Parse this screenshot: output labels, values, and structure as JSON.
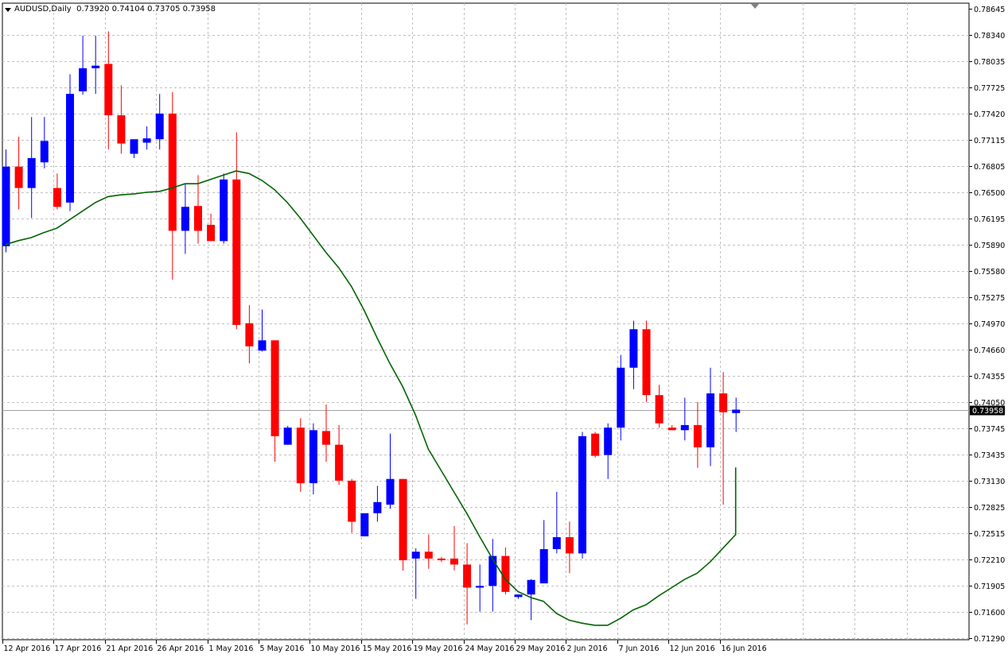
{
  "header": {
    "symbol": "AUDUSD,Daily",
    "ohlc": "0.73920 0.74104 0.73705 0.73958"
  },
  "chart_data": {
    "type": "candlestick",
    "ylim": [
      0.7129,
      0.78645
    ],
    "y_ticks": [
      "0.78645",
      "0.78340",
      "0.78035",
      "0.77725",
      "0.77420",
      "0.77115",
      "0.76805",
      "0.76500",
      "0.76195",
      "0.75890",
      "0.75580",
      "0.75275",
      "0.74970",
      "0.74660",
      "0.74355",
      "0.74050",
      "0.73745",
      "0.73435",
      "0.73130",
      "0.72825",
      "0.72515",
      "0.72210",
      "0.71905",
      "0.71600",
      "0.71290"
    ],
    "x_labels": [
      {
        "i": 0,
        "label": "12 Apr 2016"
      },
      {
        "i": 4,
        "label": "17 Apr 2016"
      },
      {
        "i": 8,
        "label": "21 Apr 2016"
      },
      {
        "i": 12,
        "label": "26 Apr 2016"
      },
      {
        "i": 16,
        "label": "1 May 2016"
      },
      {
        "i": 20,
        "label": "5 May 2016"
      },
      {
        "i": 24,
        "label": "10 May 2016"
      },
      {
        "i": 28,
        "label": "15 May 2016"
      },
      {
        "i": 32,
        "label": "19 May 2016"
      },
      {
        "i": 36,
        "label": "24 May 2016"
      },
      {
        "i": 40,
        "label": "29 May 2016"
      },
      {
        "i": 44,
        "label": "2 Jun 2016"
      },
      {
        "i": 48,
        "label": "7 Jun 2016"
      },
      {
        "i": 52,
        "label": "12 Jun 2016"
      },
      {
        "i": 56,
        "label": "16 Jun 2016"
      }
    ],
    "current_price": "0.73958",
    "candles": [
      {
        "o": 0.7587,
        "h": 0.77,
        "l": 0.758,
        "c": 0.768
      },
      {
        "o": 0.768,
        "h": 0.7715,
        "l": 0.763,
        "c": 0.7655
      },
      {
        "o": 0.7655,
        "h": 0.7738,
        "l": 0.762,
        "c": 0.769
      },
      {
        "o": 0.7685,
        "h": 0.7738,
        "l": 0.7678,
        "c": 0.771
      },
      {
        "o": 0.7655,
        "h": 0.7672,
        "l": 0.763,
        "c": 0.7633
      },
      {
        "o": 0.7638,
        "h": 0.7788,
        "l": 0.7628,
        "c": 0.7765
      },
      {
        "o": 0.7768,
        "h": 0.7833,
        "l": 0.7764,
        "c": 0.7795
      },
      {
        "o": 0.7795,
        "h": 0.7833,
        "l": 0.7765,
        "c": 0.7798
      },
      {
        "o": 0.78,
        "h": 0.7838,
        "l": 0.77,
        "c": 0.774
      },
      {
        "o": 0.774,
        "h": 0.7775,
        "l": 0.7695,
        "c": 0.7707
      },
      {
        "o": 0.7695,
        "h": 0.771,
        "l": 0.769,
        "c": 0.7712
      },
      {
        "o": 0.7708,
        "h": 0.7727,
        "l": 0.77,
        "c": 0.7713
      },
      {
        "o": 0.7712,
        "h": 0.7765,
        "l": 0.77,
        "c": 0.7742
      },
      {
        "o": 0.7742,
        "h": 0.7767,
        "l": 0.7548,
        "c": 0.7605
      },
      {
        "o": 0.7605,
        "h": 0.766,
        "l": 0.7578,
        "c": 0.7633
      },
      {
        "o": 0.7634,
        "h": 0.767,
        "l": 0.759,
        "c": 0.7605
      },
      {
        "o": 0.7612,
        "h": 0.7625,
        "l": 0.7595,
        "c": 0.7593
      },
      {
        "o": 0.7593,
        "h": 0.7672,
        "l": 0.759,
        "c": 0.7665
      },
      {
        "o": 0.7665,
        "h": 0.772,
        "l": 0.749,
        "c": 0.7495
      },
      {
        "o": 0.7497,
        "h": 0.7518,
        "l": 0.745,
        "c": 0.747
      },
      {
        "o": 0.7465,
        "h": 0.7513,
        "l": 0.7464,
        "c": 0.7477
      },
      {
        "o": 0.7477,
        "h": 0.7477,
        "l": 0.7335,
        "c": 0.7365
      },
      {
        "o": 0.7355,
        "h": 0.7377,
        "l": 0.7355,
        "c": 0.7375
      },
      {
        "o": 0.7375,
        "h": 0.7386,
        "l": 0.73,
        "c": 0.731
      },
      {
        "o": 0.731,
        "h": 0.738,
        "l": 0.7297,
        "c": 0.7372
      },
      {
        "o": 0.7371,
        "h": 0.7402,
        "l": 0.7335,
        "c": 0.7355
      },
      {
        "o": 0.7355,
        "h": 0.7378,
        "l": 0.7308,
        "c": 0.7313
      },
      {
        "o": 0.7313,
        "h": 0.7315,
        "l": 0.7252,
        "c": 0.7265
      },
      {
        "o": 0.7248,
        "h": 0.7273,
        "l": 0.7248,
        "c": 0.7275
      },
      {
        "o": 0.7275,
        "h": 0.7307,
        "l": 0.7265,
        "c": 0.7288
      },
      {
        "o": 0.7285,
        "h": 0.7368,
        "l": 0.728,
        "c": 0.7315
      },
      {
        "o": 0.7315,
        "h": 0.7315,
        "l": 0.7208,
        "c": 0.722
      },
      {
        "o": 0.7222,
        "h": 0.7234,
        "l": 0.7175,
        "c": 0.723
      },
      {
        "o": 0.723,
        "h": 0.725,
        "l": 0.721,
        "c": 0.7222
      },
      {
        "o": 0.7222,
        "h": 0.7224,
        "l": 0.7218,
        "c": 0.722
      },
      {
        "o": 0.7222,
        "h": 0.726,
        "l": 0.7208,
        "c": 0.7215
      },
      {
        "o": 0.7215,
        "h": 0.724,
        "l": 0.7145,
        "c": 0.7188
      },
      {
        "o": 0.7188,
        "h": 0.7215,
        "l": 0.716,
        "c": 0.719
      },
      {
        "o": 0.719,
        "h": 0.7245,
        "l": 0.716,
        "c": 0.7225
      },
      {
        "o": 0.7225,
        "h": 0.7235,
        "l": 0.718,
        "c": 0.7183
      },
      {
        "o": 0.7177,
        "h": 0.718,
        "l": 0.7175,
        "c": 0.718
      },
      {
        "o": 0.718,
        "h": 0.7198,
        "l": 0.715,
        "c": 0.7197
      },
      {
        "o": 0.7193,
        "h": 0.7267,
        "l": 0.7193,
        "c": 0.7233
      },
      {
        "o": 0.7233,
        "h": 0.73,
        "l": 0.7228,
        "c": 0.7247
      },
      {
        "o": 0.7247,
        "h": 0.7265,
        "l": 0.7205,
        "c": 0.7228
      },
      {
        "o": 0.7228,
        "h": 0.737,
        "l": 0.7222,
        "c": 0.7365
      },
      {
        "o": 0.7368,
        "h": 0.737,
        "l": 0.734,
        "c": 0.7342
      },
      {
        "o": 0.7343,
        "h": 0.738,
        "l": 0.7315,
        "c": 0.7375
      },
      {
        "o": 0.7375,
        "h": 0.746,
        "l": 0.736,
        "c": 0.7445
      },
      {
        "o": 0.7445,
        "h": 0.75,
        "l": 0.742,
        "c": 0.749
      },
      {
        "o": 0.749,
        "h": 0.75,
        "l": 0.7405,
        "c": 0.7413
      },
      {
        "o": 0.7413,
        "h": 0.7425,
        "l": 0.7375,
        "c": 0.738
      },
      {
        "o": 0.7375,
        "h": 0.7378,
        "l": 0.7372,
        "c": 0.7372
      },
      {
        "o": 0.7372,
        "h": 0.741,
        "l": 0.736,
        "c": 0.7378
      },
      {
        "o": 0.7378,
        "h": 0.7405,
        "l": 0.7328,
        "c": 0.7352
      },
      {
        "o": 0.7352,
        "h": 0.7445,
        "l": 0.733,
        "c": 0.7415
      },
      {
        "o": 0.7415,
        "h": 0.744,
        "l": 0.7285,
        "c": 0.7393
      },
      {
        "o": 0.7392,
        "h": 0.741,
        "l": 0.737,
        "c": 0.7396
      }
    ],
    "ma": [
      0.7589,
      0.75935,
      0.7597,
      0.7603,
      0.7608,
      0.7618,
      0.7628,
      0.7638,
      0.7645,
      0.7647,
      0.7648,
      0.765,
      0.7651,
      0.7655,
      0.766,
      0.766,
      0.7665,
      0.767,
      0.7675,
      0.7672,
      0.7664,
      0.7653,
      0.7638,
      0.762,
      0.76,
      0.758,
      0.7562,
      0.754,
      0.7512,
      0.748,
      0.745,
      0.7423,
      0.739,
      0.735,
      0.7325,
      0.73,
      0.7275,
      0.7248,
      0.7222,
      0.7198,
      0.71835,
      0.71765,
      0.7172,
      0.7158,
      0.715,
      0.71465,
      0.7144,
      0.7144,
      0.7152,
      0.7162,
      0.7168,
      0.71785,
      0.7188,
      0.71975,
      0.7205,
      0.7218,
      0.7234,
      0.725
    ],
    "ma_current": 0.73285,
    "colors": {
      "bull": "#0000ff",
      "bear": "#ff0000",
      "ma": "#006400",
      "grid": "#c0c0c0",
      "axis": "#000000"
    }
  }
}
